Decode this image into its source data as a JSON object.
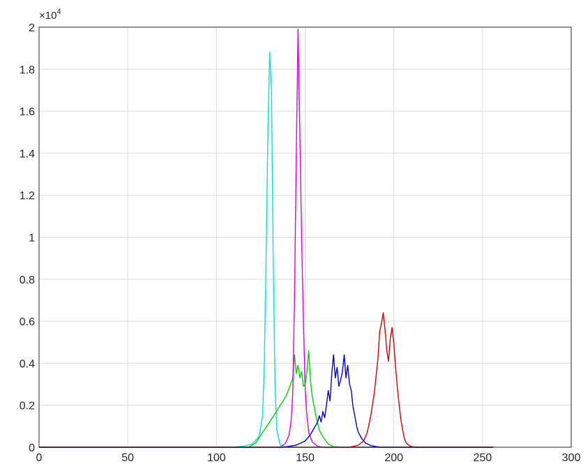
{
  "chart_data": {
    "type": "line",
    "title": "",
    "xlabel": "",
    "ylabel": "",
    "xlim": [
      0,
      300
    ],
    "ylim": [
      0,
      20000
    ],
    "x_ticks": [
      "0",
      "50",
      "100",
      "150",
      "200",
      "250",
      "300"
    ],
    "y_ticks": [
      "0",
      "0.2",
      "0.4",
      "0.6",
      "0.8",
      "1",
      "1.2",
      "1.4",
      "1.6",
      "1.8",
      "2"
    ],
    "y_exponent": {
      "base": "×10",
      "power": "4"
    },
    "grid": true,
    "legend": "none",
    "series": [
      {
        "color": "#00e5d6",
        "points": [
          [
            0,
            0
          ],
          [
            110,
            0
          ],
          [
            115,
            50
          ],
          [
            120,
            150
          ],
          [
            124,
            500
          ],
          [
            126,
            1500
          ],
          [
            127,
            4000
          ],
          [
            128,
            9000
          ],
          [
            129,
            15000
          ],
          [
            130,
            18800
          ],
          [
            131,
            17000
          ],
          [
            132,
            9000
          ],
          [
            133,
            3000
          ],
          [
            134,
            800
          ],
          [
            136,
            100
          ],
          [
            140,
            0
          ],
          [
            256,
            0
          ]
        ]
      },
      {
        "color": "#00d400",
        "points": [
          [
            0,
            0
          ],
          [
            118,
            0
          ],
          [
            122,
            200
          ],
          [
            126,
            700
          ],
          [
            130,
            1200
          ],
          [
            133,
            1600
          ],
          [
            136,
            2000
          ],
          [
            139,
            2400
          ],
          [
            141,
            2800
          ],
          [
            143,
            3300
          ],
          [
            144,
            4400
          ],
          [
            145,
            3500
          ],
          [
            146,
            3900
          ],
          [
            147,
            3300
          ],
          [
            148,
            3600
          ],
          [
            149,
            2900
          ],
          [
            150,
            3000
          ],
          [
            151,
            3600
          ],
          [
            152,
            4600
          ],
          [
            153,
            3200
          ],
          [
            154,
            2400
          ],
          [
            156,
            1500
          ],
          [
            158,
            800
          ],
          [
            160,
            500
          ],
          [
            163,
            150
          ],
          [
            166,
            30
          ],
          [
            170,
            0
          ],
          [
            256,
            0
          ]
        ]
      },
      {
        "color": "#e000e0",
        "points": [
          [
            0,
            0
          ],
          [
            136,
            0
          ],
          [
            139,
            200
          ],
          [
            141,
            600
          ],
          [
            142,
            1200
          ],
          [
            143,
            2500
          ],
          [
            144,
            7000
          ],
          [
            145,
            14000
          ],
          [
            146,
            19900
          ],
          [
            147,
            15000
          ],
          [
            148,
            10000
          ],
          [
            149,
            6000
          ],
          [
            150,
            2800
          ],
          [
            151,
            1500
          ],
          [
            152,
            700
          ],
          [
            154,
            250
          ],
          [
            157,
            50
          ],
          [
            160,
            0
          ],
          [
            256,
            0
          ]
        ]
      },
      {
        "color": "#0000d0",
        "points": [
          [
            0,
            0
          ],
          [
            138,
            0
          ],
          [
            145,
            100
          ],
          [
            150,
            300
          ],
          [
            153,
            600
          ],
          [
            155,
            900
          ],
          [
            157,
            1200
          ],
          [
            158,
            1500
          ],
          [
            159,
            1200
          ],
          [
            160,
            1700
          ],
          [
            161,
            1400
          ],
          [
            162,
            2000
          ],
          [
            163,
            2700
          ],
          [
            164,
            2200
          ],
          [
            165,
            3500
          ],
          [
            166,
            4400
          ],
          [
            167,
            3300
          ],
          [
            168,
            3800
          ],
          [
            169,
            2900
          ],
          [
            170,
            3200
          ],
          [
            171,
            3600
          ],
          [
            172,
            4400
          ],
          [
            173,
            3300
          ],
          [
            174,
            3900
          ],
          [
            175,
            3000
          ],
          [
            176,
            2700
          ],
          [
            177,
            1900
          ],
          [
            178,
            1500
          ],
          [
            179,
            1000
          ],
          [
            180,
            700
          ],
          [
            182,
            400
          ],
          [
            184,
            200
          ],
          [
            187,
            80
          ],
          [
            190,
            30
          ],
          [
            193,
            0
          ],
          [
            256,
            0
          ]
        ]
      },
      {
        "color": "#d40000",
        "points": [
          [
            0,
            0
          ],
          [
            175,
            0
          ],
          [
            180,
            100
          ],
          [
            183,
            300
          ],
          [
            185,
            700
          ],
          [
            187,
            1500
          ],
          [
            189,
            2600
          ],
          [
            191,
            4200
          ],
          [
            192,
            5500
          ],
          [
            193,
            5900
          ],
          [
            194,
            6400
          ],
          [
            195,
            5600
          ],
          [
            196,
            4600
          ],
          [
            197,
            4100
          ],
          [
            198,
            5200
          ],
          [
            199,
            5700
          ],
          [
            200,
            4900
          ],
          [
            201,
            3800
          ],
          [
            202,
            2800
          ],
          [
            203,
            2000
          ],
          [
            204,
            1300
          ],
          [
            205,
            800
          ],
          [
            206,
            400
          ],
          [
            207,
            200
          ],
          [
            209,
            60
          ],
          [
            212,
            0
          ],
          [
            256,
            0
          ]
        ]
      }
    ]
  }
}
